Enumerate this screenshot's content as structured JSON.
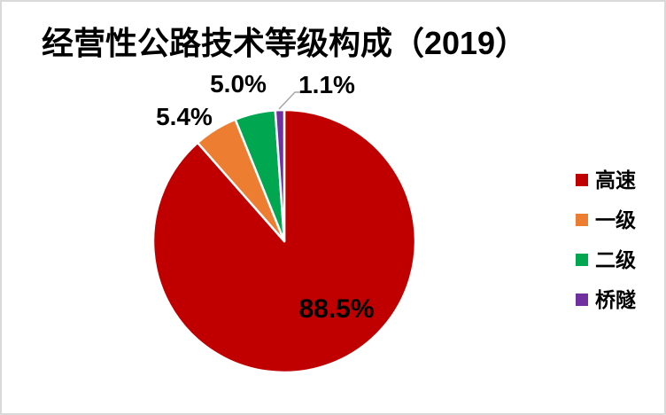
{
  "chart_data": {
    "type": "pie",
    "title": "经营性公路技术等级构成（2019）",
    "legend_position": "right",
    "start_angle_deg": 0,
    "direction": "clockwise",
    "series": [
      {
        "label": "高速",
        "value": 88.5,
        "data_label": "88.5%",
        "color": "#C00000"
      },
      {
        "label": "一级",
        "value": 5.4,
        "data_label": "5.4%",
        "color": "#ED7D31"
      },
      {
        "label": "二级",
        "value": 5.0,
        "data_label": "5.0%",
        "color": "#00A650"
      },
      {
        "label": "桥隧",
        "value": 1.1,
        "data_label": "1.1%",
        "color": "#7030A0"
      }
    ],
    "slice_separator_color": "#FFFFFF",
    "leader_line_color": "#A6A6A6",
    "background_color": "#FFFFFF",
    "frame_border_color": "#D9D9D9",
    "text_color": "#000000"
  }
}
